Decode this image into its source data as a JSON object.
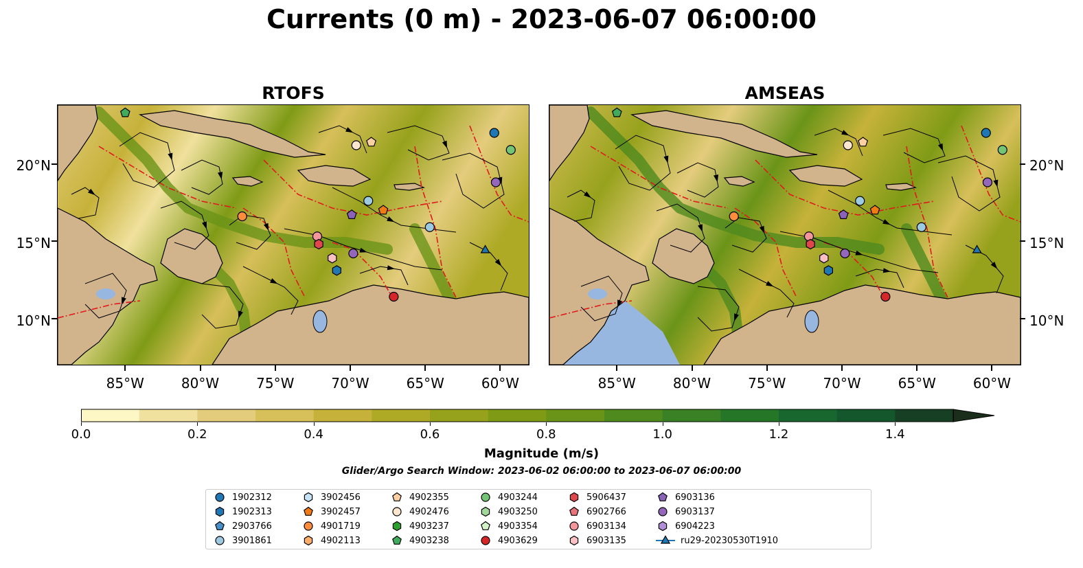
{
  "title": "Currents (0 m) - 2023-06-07 06:00:00",
  "maps": [
    {
      "id": "rtofs",
      "title": "RTOFS"
    },
    {
      "id": "amseas",
      "title": "AMSEAS"
    }
  ],
  "axes": {
    "lon_ticks": [
      "85°W",
      "80°W",
      "75°W",
      "70°W",
      "65°W",
      "60°W"
    ],
    "lon_values": [
      -85,
      -80,
      -75,
      -70,
      -65,
      -60
    ],
    "lat_ticks": [
      "20°N",
      "15°N",
      "10°N"
    ],
    "lat_values": [
      20,
      15,
      10
    ],
    "lon_range": [
      -89.5,
      -58.1
    ],
    "lat_range": [
      7,
      23.8
    ]
  },
  "colorbar": {
    "label": "Magnitude (m/s)",
    "ticks": [
      "0.0",
      "0.2",
      "0.4",
      "0.6",
      "0.8",
      "1.0",
      "1.2",
      "1.4"
    ],
    "range": [
      0,
      1.5
    ],
    "extend": "max",
    "colors": [
      "#fdf6c5",
      "#f0e19e",
      "#e4cc7d",
      "#d7bf5a",
      "#c6b23a",
      "#aeaa26",
      "#97a21c",
      "#7f9b16",
      "#6a9418",
      "#4f8a1e",
      "#3a8024",
      "#267628",
      "#17672f",
      "#15572c",
      "#173f23",
      "#1b2e1c"
    ]
  },
  "search_window": "Glider/Argo Search Window: 2023-06-02 06:00:00 to 2023-06-07 06:00:00",
  "legend": [
    {
      "label": "1902312",
      "marker": "circle",
      "color": "#1f77b4"
    },
    {
      "label": "1902313",
      "marker": "hexagon",
      "color": "#1f77b4"
    },
    {
      "label": "2903766",
      "marker": "pentagon",
      "color": "#4a90c8"
    },
    {
      "label": "3901861",
      "marker": "circle",
      "color": "#9ecae1"
    },
    {
      "label": "3902456",
      "marker": "hexagon",
      "color": "#c6e2f5"
    },
    {
      "label": "3902457",
      "marker": "pentagon",
      "color": "#f07a13"
    },
    {
      "label": "4901719",
      "marker": "circle",
      "color": "#fd8d3c"
    },
    {
      "label": "4902113",
      "marker": "hexagon",
      "color": "#fdae6b"
    },
    {
      "label": "4902355",
      "marker": "pentagon",
      "color": "#fdd0a2"
    },
    {
      "label": "4902476",
      "marker": "circle",
      "color": "#fee6ce"
    },
    {
      "label": "4903237",
      "marker": "hexagon",
      "color": "#2ca02c"
    },
    {
      "label": "4903238",
      "marker": "pentagon",
      "color": "#41ab5d"
    },
    {
      "label": "4903244",
      "marker": "circle",
      "color": "#74c476"
    },
    {
      "label": "4903250",
      "marker": "hexagon",
      "color": "#a1d99b"
    },
    {
      "label": "4903354",
      "marker": "pentagon",
      "color": "#d4f2c8"
    },
    {
      "label": "4903629",
      "marker": "circle",
      "color": "#d62728"
    },
    {
      "label": "5906437",
      "marker": "hexagon",
      "color": "#e0474c"
    },
    {
      "label": "6902766",
      "marker": "pentagon",
      "color": "#e8737a"
    },
    {
      "label": "6903134",
      "marker": "circle",
      "color": "#f4979c"
    },
    {
      "label": "6903135",
      "marker": "hexagon",
      "color": "#fbc0c4"
    },
    {
      "label": "6903136",
      "marker": "pentagon",
      "color": "#8a63b8"
    },
    {
      "label": "6903137",
      "marker": "circle",
      "color": "#9467bd"
    },
    {
      "label": "6904223",
      "marker": "hexagon",
      "color": "#b08fd6"
    },
    {
      "label": "ru29-20230530T1910",
      "marker": "triangle-line",
      "color": "#1f77b4"
    }
  ],
  "floats": [
    {
      "id": "1902312",
      "lon": -60.4,
      "lat": 22.0
    },
    {
      "id": "4903244",
      "lon": -59.3,
      "lat": 20.9
    },
    {
      "id": "6903137",
      "lon": -60.3,
      "lat": 18.8
    },
    {
      "id": "4902355",
      "lon": -68.6,
      "lat": 21.4
    },
    {
      "id": "4902476",
      "lon": -69.6,
      "lat": 21.2
    },
    {
      "id": "3901861",
      "lon": -68.8,
      "lat": 17.6
    },
    {
      "id": "3902457",
      "lon": -67.8,
      "lat": 17.0
    },
    {
      "id": "6903136",
      "lon": -69.9,
      "lat": 16.7
    },
    {
      "id": "4901719",
      "lon": -77.2,
      "lat": 16.6
    },
    {
      "id": "3901861b",
      "lon": -64.7,
      "lat": 15.9
    },
    {
      "id": "6903134",
      "lon": -72.2,
      "lat": 15.3
    },
    {
      "id": "5906437",
      "lon": -72.1,
      "lat": 14.8
    },
    {
      "id": "6903137b",
      "lon": -69.8,
      "lat": 14.2
    },
    {
      "id": "6903135",
      "lon": -71.2,
      "lat": 13.9
    },
    {
      "id": "1902313",
      "lon": -70.9,
      "lat": 13.1
    },
    {
      "id": "4903629",
      "lon": -67.1,
      "lat": 11.4
    },
    {
      "id": "4903238",
      "lon": -85.0,
      "lat": 23.3
    },
    {
      "id": "ru29-20230530T1910",
      "lon": -61.0,
      "lat": 14.4
    }
  ]
}
